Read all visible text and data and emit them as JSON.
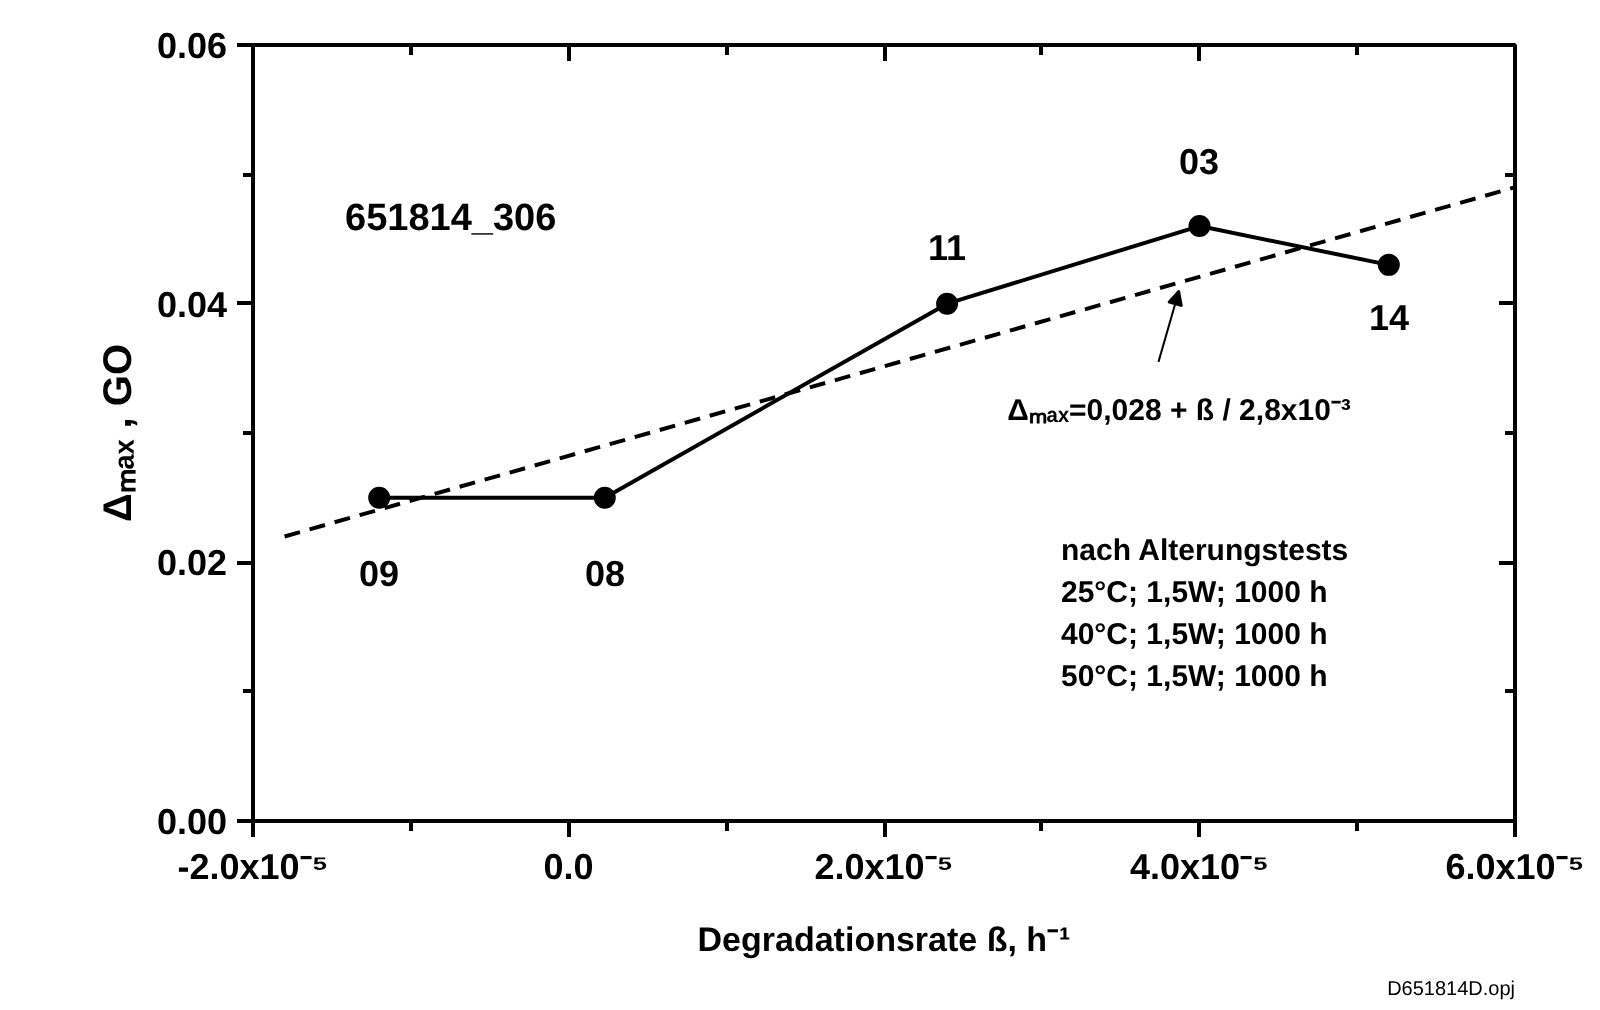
{
  "chart_data": {
    "type": "line",
    "xlabel": "Degradationsrate ß, h⁻¹",
    "ylabel": "Δₘₐₓ , GO",
    "xlim": [
      -2e-05,
      6e-05
    ],
    "xticks": [
      {
        "value": -2e-05,
        "label": "-2.0x10⁻⁵"
      },
      {
        "value": 0,
        "label": "0.0"
      },
      {
        "value": 2e-05,
        "label": "2.0x10⁻⁵"
      },
      {
        "value": 4e-05,
        "label": "4.0x10⁻⁵"
      },
      {
        "value": 6e-05,
        "label": "6.0x10⁻⁵"
      }
    ],
    "ylim": [
      0,
      0.06
    ],
    "yticks": [
      {
        "value": 0,
        "label": "0.00"
      },
      {
        "value": 0.02,
        "label": "0.02"
      },
      {
        "value": 0.04,
        "label": "0.04"
      },
      {
        "value": 0.06,
        "label": "0.06"
      }
    ],
    "grid": false,
    "series": [
      {
        "color": "#000000",
        "marker": "circle",
        "line_style": "solid",
        "x": [
          -1.2e-05,
          2.3e-06,
          2.4e-05,
          4e-05,
          5.2e-05
        ],
        "values": [
          0.025,
          0.025,
          0.04,
          0.046,
          0.043
        ]
      },
      {
        "color": "#000000",
        "marker": "none",
        "line_style": "dashed",
        "x": [
          -1.8e-05,
          6e-05
        ],
        "values": [
          0.022,
          0.049
        ]
      }
    ],
    "annotations": [
      "651814_306",
      "nach Alterungstests\n25°C; 1,5W; 1000 h\n40°C; 1,5W; 1000 h\n50°C; 1,5W; 1000 h",
      "D651814D.opj",
      {
        "text": "Δₘₐₓ=0,028 + ß / 2,8x10⁻³",
        "x": 3.87e-05,
        "y": 0.041
      },
      "09",
      "08",
      "11",
      "03",
      "14"
    ]
  }
}
